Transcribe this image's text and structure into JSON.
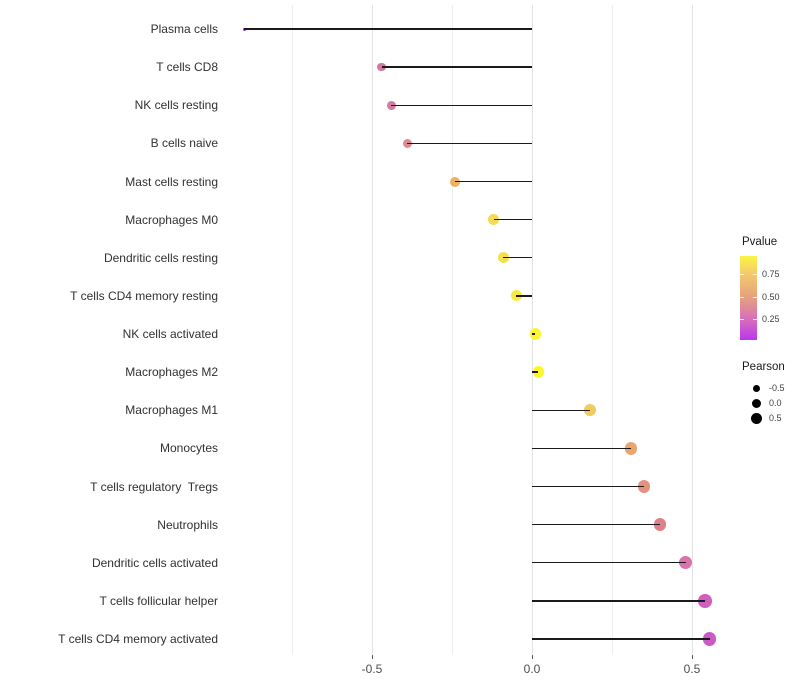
{
  "chart_data": {
    "type": "scatter",
    "subtype": "lollipop",
    "title": "",
    "xlabel": "",
    "ylabel": "",
    "xlim": [
      -0.97,
      0.625
    ],
    "x_axis": {
      "ticks": [
        {
          "value": -0.5,
          "label": "-0.5"
        },
        {
          "value": 0.0,
          "label": "0.0"
        },
        {
          "value": 0.5,
          "label": "0.5"
        }
      ],
      "minor_gridlines": [
        -0.75,
        -0.25,
        0.25
      ],
      "grid": "vertical-only"
    },
    "baseline": 0.0,
    "points": [
      {
        "label": "Plasma cells",
        "pearson": -0.9,
        "pvalue_approx": 0.02,
        "color": "#9C2FE6"
      },
      {
        "label": "T cells CD8",
        "pearson": -0.47,
        "pvalue_approx": 0.3,
        "color": "#D278A6"
      },
      {
        "label": "NK cells resting",
        "pearson": -0.44,
        "pvalue_approx": 0.33,
        "color": "#D37CA2"
      },
      {
        "label": "B cells naive",
        "pearson": -0.39,
        "pvalue_approx": 0.4,
        "color": "#DC8C90"
      },
      {
        "label": "Mast cells resting",
        "pearson": -0.24,
        "pvalue_approx": 0.57,
        "color": "#EDB163"
      },
      {
        "label": "Macrophages M0",
        "pearson": -0.12,
        "pvalue_approx": 0.72,
        "color": "#F5DB50"
      },
      {
        "label": "Dendritic cells resting",
        "pearson": -0.09,
        "pvalue_approx": 0.76,
        "color": "#F6E14B"
      },
      {
        "label": "T cells CD4 memory resting",
        "pearson": -0.05,
        "pvalue_approx": 0.82,
        "color": "#F8EA43"
      },
      {
        "label": "NK cells activated",
        "pearson": 0.01,
        "pvalue_approx": 0.9,
        "color": "#FBF52F"
      },
      {
        "label": "Macrophages M2",
        "pearson": 0.02,
        "pvalue_approx": 0.92,
        "color": "#FCF72B"
      },
      {
        "label": "Macrophages M1",
        "pearson": 0.18,
        "pvalue_approx": 0.68,
        "color": "#F0CB5F"
      },
      {
        "label": "Monocytes",
        "pearson": 0.31,
        "pvalue_approx": 0.52,
        "color": "#EAA56E"
      },
      {
        "label": "T cells regulatory  Tregs",
        "pearson": 0.35,
        "pvalue_approx": 0.45,
        "color": "#E39180"
      },
      {
        "label": "Neutrophils",
        "pearson": 0.4,
        "pvalue_approx": 0.38,
        "color": "#DE8289"
      },
      {
        "label": "Dendritic cells activated",
        "pearson": 0.48,
        "pvalue_approx": 0.28,
        "color": "#D873AC"
      },
      {
        "label": "T cells follicular helper",
        "pearson": 0.54,
        "pvalue_approx": 0.22,
        "color": "#D05FC0"
      },
      {
        "label": "T cells CD4 memory activated",
        "pearson": 0.555,
        "pvalue_approx": 0.2,
        "color": "#CC5AC6"
      }
    ],
    "legend_pvalue": {
      "title": "Pvalue",
      "tick_labels": [
        "0.75",
        "0.50",
        "0.25"
      ],
      "range_shown": [
        0.95,
        0.02
      ],
      "gradient_top_to_bottom": [
        {
          "pos": 0,
          "color": "#FBF444"
        },
        {
          "pos": 0.22,
          "color": "#F2C96B"
        },
        {
          "pos": 0.48,
          "color": "#E7A37D"
        },
        {
          "pos": 0.75,
          "color": "#D76FB9"
        },
        {
          "pos": 1,
          "color": "#BB36F0"
        }
      ]
    },
    "legend_pearson": {
      "title": "Pearson",
      "tick_labels": [
        "-0.5",
        "0.0",
        "0.5"
      ]
    }
  }
}
